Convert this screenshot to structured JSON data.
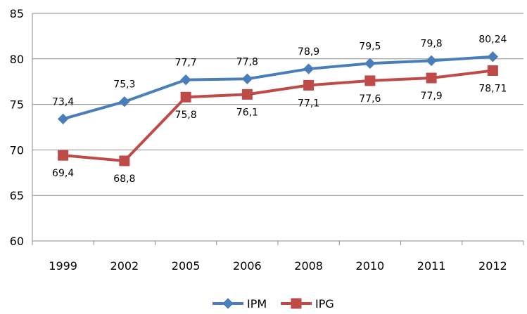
{
  "chart_data": {
    "type": "line",
    "categories": [
      "1999",
      "2002",
      "2005",
      "2006",
      "2008",
      "2010",
      "2011",
      "2012"
    ],
    "series": [
      {
        "name": "IPM",
        "color": "#4a7ebb",
        "marker": "diamond",
        "values": [
          73.4,
          75.3,
          77.7,
          77.8,
          78.9,
          79.5,
          79.8,
          80.24
        ],
        "labels": [
          "73,4",
          "75,3",
          "77,7",
          "77,8",
          "78,9",
          "79,5",
          "79,8",
          "80,24"
        ],
        "label_position": "above"
      },
      {
        "name": "IPG",
        "color": "#be4b48",
        "marker": "square",
        "values": [
          69.4,
          68.8,
          75.8,
          76.1,
          77.1,
          77.6,
          77.9,
          78.71
        ],
        "labels": [
          "69,4",
          "68,8",
          "75,8",
          "76,1",
          "77,1",
          "77,6",
          "77,9",
          "78,71"
        ],
        "label_position": "below"
      }
    ],
    "ylim": [
      60,
      85
    ],
    "y_ticks": [
      "60",
      "65",
      "70",
      "75",
      "80",
      "85"
    ],
    "grid": true,
    "legend_position": "bottom",
    "title": "",
    "xlabel": "",
    "ylabel": ""
  }
}
